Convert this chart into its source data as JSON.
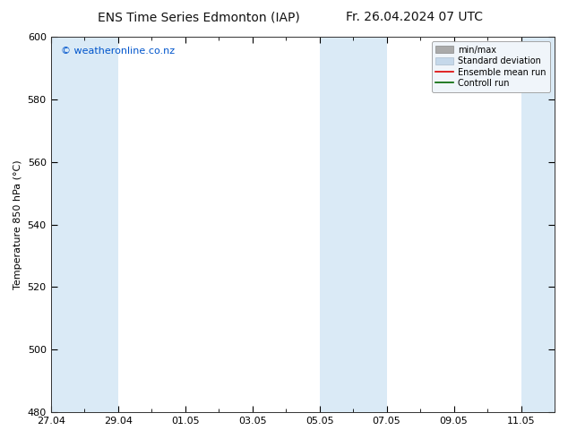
{
  "title_left": "ENS Time Series Edmonton (IAP)",
  "title_right": "Fr. 26.04.2024 07 UTC",
  "ylabel": "Temperature 850 hPa (°C)",
  "ylim": [
    480,
    600
  ],
  "yticks": [
    480,
    500,
    520,
    540,
    560,
    580,
    600
  ],
  "xtick_labels": [
    "27.04",
    "29.04",
    "01.05",
    "03.05",
    "05.05",
    "07.05",
    "09.05",
    "11.05"
  ],
  "xtick_positions": [
    0,
    2,
    4,
    6,
    8,
    10,
    12,
    14
  ],
  "watermark": "© weatheronline.co.nz",
  "watermark_color": "#0055cc",
  "bg_color": "#ffffff",
  "plot_bg_color": "#ffffff",
  "shaded_band_color": "#daeaf6",
  "legend_labels": [
    "min/max",
    "Standard deviation",
    "Ensemble mean run",
    "Controll run"
  ],
  "legend_minmax_color": "#aaaaaa",
  "legend_std_color": "#c5d8ea",
  "legend_mean_color": "#dd0000",
  "legend_ctrl_color": "#006600",
  "shaded_ranges": [
    [
      0,
      2
    ],
    [
      8,
      10
    ],
    [
      14,
      16
    ]
  ],
  "title_fontsize": 10,
  "axis_label_fontsize": 8,
  "tick_label_fontsize": 8,
  "watermark_fontsize": 8,
  "legend_fontsize": 7,
  "total_days": 15,
  "xlim": [
    0,
    15
  ]
}
